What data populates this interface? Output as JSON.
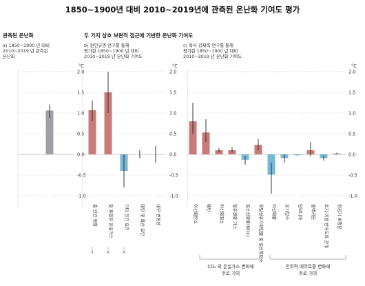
{
  "title": "1850~1900년 대비 2010~2019년에 관측된 온난화 기여도 평가",
  "panels": {
    "a": {
      "heading": "관측된 온난화",
      "subtitle": "a) 1850~1900 년 대비\n2010~2019 년 관측된\n온난화"
    },
    "b": {
      "heading": "두 가지 상호 보완적 접근에 기반한 온난화 기여도",
      "subtitle": "b) 원인규명 연구를 통해\n평가된 1850~1900 년 대비\n2010~2019 년 온난화 기여도"
    },
    "c": {
      "subtitle": "c) 복사 강제력 연구를 통해\n평가된 1850~1900 년 대비\n2010~2019 년 온난화 기여도"
    }
  },
  "brackets": {
    "left": {
      "line1": "CO₂ 외 온실가스 변화에",
      "line2": "주로 기여"
    },
    "right": {
      "line1": "인위적 에어로졸 변화에",
      "line2": "주로 기여"
    }
  },
  "colors": {
    "observed": "#a0a1a4",
    "warming": "#c97a78",
    "cooling": "#79b8d4",
    "grid": "#c8c8c8",
    "error": "#222222"
  },
  "chart_data": [
    {
      "type": "bar",
      "panel": "a",
      "unit": "°C",
      "ylim": [
        -1.0,
        2.0
      ],
      "yticks": [
        2.0,
        1.5,
        1.0,
        0.5,
        0.0,
        -0.5,
        -1.0
      ],
      "categories": [
        ""
      ],
      "values": [
        1.06
      ],
      "error_low": [
        0.88
      ],
      "error_high": [
        1.21
      ],
      "sign": [
        "observed"
      ]
    },
    {
      "type": "bar",
      "panel": "b",
      "unit": "°C",
      "ylim": [
        -1.0,
        2.0
      ],
      "yticks": [
        2.0,
        1.5,
        1.0,
        0.5,
        0.0,
        -0.5,
        -1.0
      ],
      "categories": [
        "총 인간 영향",
        "잘 혼합된 온실가스",
        "기타 인간 요인",
        "태양 및 화산 요인",
        "내부 변동성"
      ],
      "values": [
        1.07,
        1.5,
        -0.4,
        0.0,
        0.0
      ],
      "error_low": [
        0.8,
        1.0,
        -0.8,
        -0.1,
        -0.2
      ],
      "error_high": [
        1.3,
        2.0,
        0.0,
        0.1,
        0.2
      ],
      "sign": [
        "warm",
        "warm",
        "cool",
        "none",
        "none"
      ]
    },
    {
      "type": "bar",
      "panel": "c",
      "unit": "°C",
      "ylim": [
        -1.0,
        2.0
      ],
      "yticks": [
        2.0,
        1.5,
        1.0,
        0.5,
        0.0,
        -0.5,
        -1.0
      ],
      "categories": [
        "이산화탄소",
        "메탄",
        "아산화질소",
        "할로겐화 가스",
        "질소산화물(NOx)",
        "휘발성유기화합물 및 일산화탄소",
        "이산화황",
        "유기탄소",
        "암모니아",
        "블랙카본",
        "토지 이용 반사도와 관개",
        "항공기 비행운"
      ],
      "values": [
        0.8,
        0.53,
        0.1,
        0.1,
        -0.13,
        0.23,
        -0.49,
        -0.09,
        -0.02,
        0.1,
        -0.09,
        0.02
      ],
      "error_low": [
        0.5,
        0.3,
        0.05,
        0.04,
        -0.25,
        0.1,
        -0.95,
        -0.2,
        -0.03,
        -0.05,
        -0.15,
        0.0
      ],
      "error_high": [
        1.25,
        0.85,
        0.15,
        0.17,
        -0.04,
        0.37,
        -0.2,
        0.0,
        -0.01,
        0.3,
        -0.03,
        0.04
      ],
      "sign": [
        "warm",
        "warm",
        "warm",
        "warm",
        "cool",
        "warm",
        "cool",
        "cool",
        "cool",
        "warm",
        "cool",
        "warm"
      ]
    }
  ]
}
